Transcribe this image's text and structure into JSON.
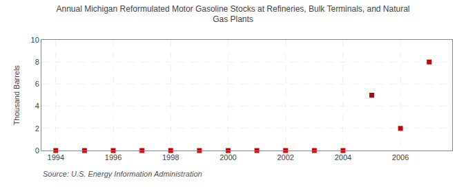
{
  "chart_data": {
    "type": "scatter",
    "title": "Annual Michigan Reformulated Motor Gasoline Stocks at Refineries, Bulk Terminals, and Natural\nGas Plants",
    "ylabel": "Thousand Barrels",
    "annotations": [
      "Source: U.S. Energy Information Administration"
    ],
    "x": [
      1994,
      1995,
      1996,
      1997,
      1998,
      1999,
      2000,
      2001,
      2002,
      2003,
      2004,
      2005,
      2006,
      2007
    ],
    "values": [
      0,
      0,
      0,
      0,
      0,
      0,
      0,
      0,
      0,
      0,
      0,
      5,
      2,
      8
    ],
    "color": "#cc0000",
    "marker": "square",
    "xlim": [
      1993.5,
      2007.8
    ],
    "ylim": [
      0,
      10
    ],
    "xticks": [
      1994,
      1996,
      1998,
      2000,
      2002,
      2004,
      2006
    ],
    "yticks": [
      0,
      2,
      4,
      6,
      8,
      10
    ],
    "grid": true
  }
}
